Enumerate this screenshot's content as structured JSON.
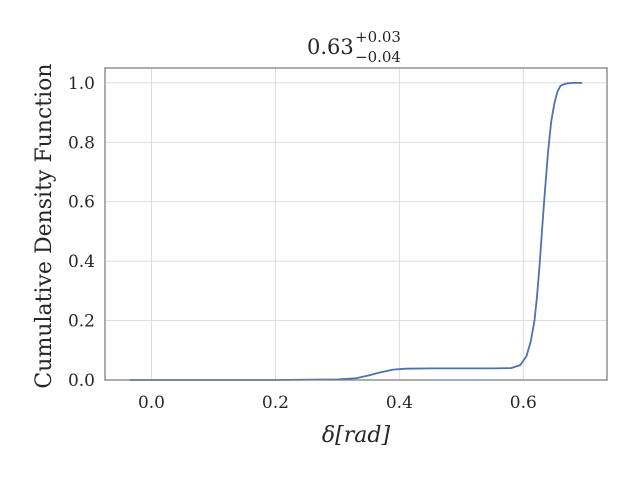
{
  "chart_data": {
    "type": "line",
    "title": {
      "value": "0.63",
      "upper": "+0.03",
      "lower": "−0.04"
    },
    "xlabel": "δ[rad]",
    "ylabel": "Cumulative Density Function",
    "xlim": [
      -0.075,
      0.735
    ],
    "ylim": [
      0.0,
      1.05
    ],
    "xticks": [
      0.0,
      0.2,
      0.4,
      0.6
    ],
    "xtick_labels": [
      "0.0",
      "0.2",
      "0.4",
      "0.6"
    ],
    "yticks": [
      0.0,
      0.2,
      0.4,
      0.6,
      0.8,
      1.0
    ],
    "ytick_labels": [
      "0.0",
      "0.2",
      "0.4",
      "0.6",
      "0.8",
      "1.0"
    ],
    "grid": true,
    "line_color": "#4c72b0",
    "grid_color": "#d9d9d9",
    "frame_color": "#808080",
    "series": [
      {
        "x": [
          -0.035,
          0.0,
          0.1,
          0.2,
          0.3,
          0.33,
          0.35,
          0.37,
          0.39,
          0.41,
          0.45,
          0.5,
          0.55,
          0.58,
          0.595,
          0.605,
          0.612,
          0.618,
          0.622,
          0.626,
          0.63,
          0.635,
          0.64,
          0.645,
          0.65,
          0.655,
          0.66,
          0.665,
          0.67,
          0.68,
          0.695
        ],
        "y": [
          0.0,
          0.0,
          0.0,
          0.0,
          0.002,
          0.006,
          0.015,
          0.026,
          0.035,
          0.038,
          0.039,
          0.039,
          0.039,
          0.04,
          0.05,
          0.08,
          0.13,
          0.2,
          0.28,
          0.38,
          0.5,
          0.64,
          0.77,
          0.87,
          0.93,
          0.97,
          0.99,
          0.995,
          0.998,
          1.0,
          1.0
        ]
      }
    ]
  }
}
